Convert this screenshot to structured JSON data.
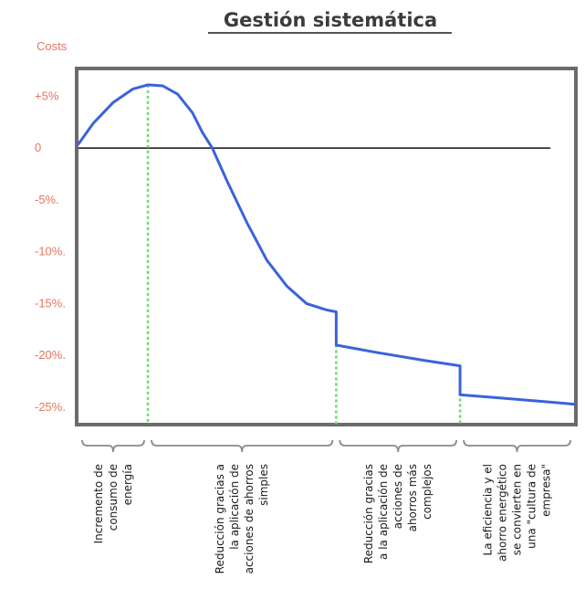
{
  "chart_data": {
    "type": "line",
    "title": "Gestión sistemática",
    "ylabel": "Costs",
    "xlabel": "",
    "ylim": [
      -26.5,
      7.5
    ],
    "y_ticks": [
      {
        "value": 5,
        "label": "+5%"
      },
      {
        "value": 0,
        "label": "0"
      },
      {
        "value": -5,
        "label": "-5%."
      },
      {
        "value": -10,
        "label": "-10%."
      },
      {
        "value": -15,
        "label": "-15%."
      },
      {
        "value": -20,
        "label": "-20%."
      },
      {
        "value": -25,
        "label": "-25%."
      }
    ],
    "x_range": [
      0,
      100
    ],
    "zero_line": 0,
    "series": [
      {
        "color": "#3b63d9",
        "points": [
          [
            0,
            0.4
          ],
          [
            3,
            2.4
          ],
          [
            7,
            4.4
          ],
          [
            11,
            5.7
          ],
          [
            14,
            6.1
          ],
          [
            17,
            6.0
          ],
          [
            20,
            5.2
          ],
          [
            23,
            3.4
          ],
          [
            25,
            1.5
          ],
          [
            27,
            0
          ],
          [
            30,
            -3.2
          ],
          [
            34,
            -7.2
          ],
          [
            38,
            -10.8
          ],
          [
            42,
            -13.3
          ],
          [
            46,
            -15.0
          ],
          [
            50,
            -15.6
          ],
          [
            52,
            -15.8
          ],
          [
            52,
            -19.0
          ],
          [
            60,
            -19.7
          ],
          [
            70,
            -20.5
          ],
          [
            77,
            -21.0
          ],
          [
            77,
            -23.8
          ],
          [
            85,
            -24.1
          ],
          [
            95,
            -24.5
          ],
          [
            100,
            -24.7
          ]
        ]
      }
    ],
    "phase_boundaries": [
      14.0,
      52.0,
      77.0
    ],
    "grid": false,
    "colors": {
      "curve": "#3b63d9",
      "markers": "#66dd66",
      "axis_labels": "#e8735f",
      "frame": "#6b6b6b"
    },
    "phases": [
      {
        "lines": [
          "Incremento de",
          "consumo de",
          "energía"
        ]
      },
      {
        "lines": [
          "Reducción gracias a",
          "la aplicación de",
          "acciones de ahorros",
          "simples"
        ]
      },
      {
        "lines": [
          "Reducción gracias",
          "a la aplicación de",
          "acciones de",
          "ahorros más",
          "complejos"
        ]
      },
      {
        "lines": [
          "La eficiencia y el",
          "ahorro energético",
          "se convierten en",
          "una \"cultura de",
          "empresa\""
        ]
      }
    ]
  }
}
